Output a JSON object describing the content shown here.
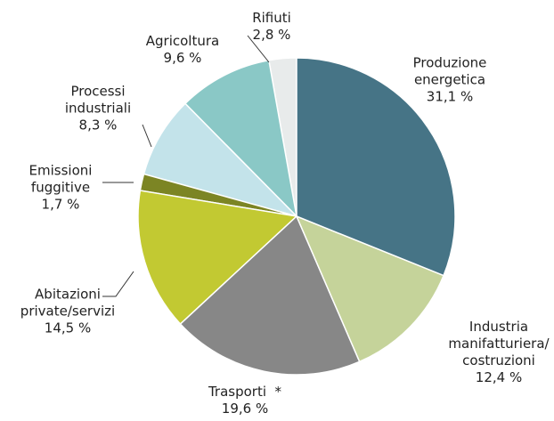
{
  "chart_data": {
    "type": "pie",
    "categories": [
      "Produzione\nenergetica",
      "Industria\nmanifatturiera/\ncostruzioni",
      "Trasporti  *",
      "Abitazioni\nprivate/servizi",
      "Emissioni\nfuggitive",
      "Processi\nindustriali",
      "Agricoltura",
      "Rifiuti"
    ],
    "values": [
      31.1,
      12.4,
      19.6,
      14.5,
      1.7,
      8.3,
      9.6,
      2.8
    ],
    "value_labels": [
      "31,1 %",
      "12,4 %",
      "19,6 %",
      "14,5 %",
      "1,7 %",
      "8,3 %",
      "9,6 %",
      "2,8 %"
    ],
    "colors": [
      "#467486",
      "#c5d39a",
      "#878787",
      "#c2c932",
      "#7c8524",
      "#c3e3ea",
      "#8ac8c6",
      "#e8ebeb"
    ]
  }
}
